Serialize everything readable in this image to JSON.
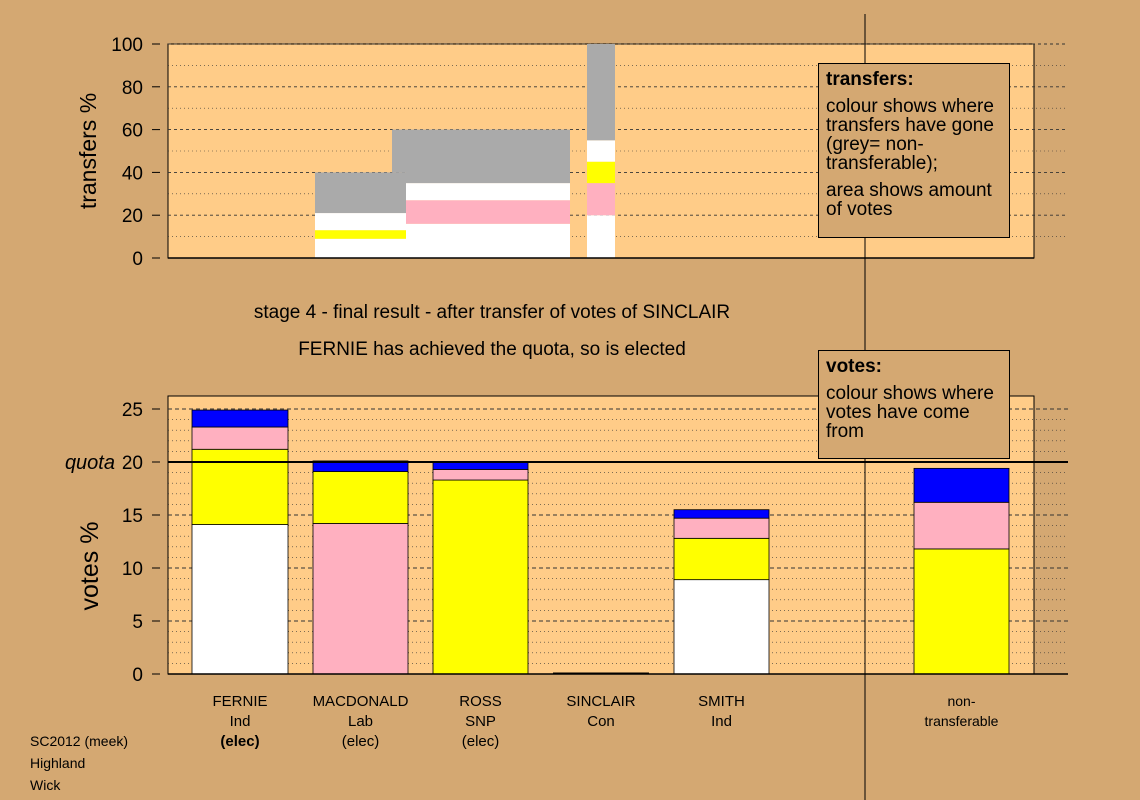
{
  "colors": {
    "page_bg": "#d4a872",
    "plot_bg": "#ffcc88",
    "Ind": "#ffffff",
    "SNP": "#ffff00",
    "Lab": "#ffb0c0",
    "Con": "#0000ff",
    "non_transferable": "#aaaaaa"
  },
  "headline": {
    "stage": "stage 4 - final result - after transfer of votes of SINCLAIR",
    "outcome": "FERNIE has achieved the quota, so is elected"
  },
  "legend_transfers": {
    "title": "transfers:",
    "text1": "colour shows where transfers have gone (grey= non-transferable);",
    "text2": "area shows amount of votes"
  },
  "legend_votes": {
    "title": "votes:",
    "text1": "colour shows where votes have come from"
  },
  "footer": {
    "line1": "SC2012 (meek)",
    "line2": "Highland",
    "line3": "Wick"
  },
  "chart_data": [
    {
      "type": "bar",
      "ylabel": "transfers %",
      "ylim": [
        0,
        100
      ],
      "yticks": [
        0,
        20,
        40,
        60,
        80,
        100
      ],
      "note": "Variable-width stacked bars; bar widths are proportional to the votes transferred at each stage; segments listed bottom-up",
      "columns": [
        {
          "segments": [
            {
              "party": "Ind",
              "from": 0,
              "to": 9
            },
            {
              "party": "SNP",
              "from": 9,
              "to": 13
            },
            {
              "party": "Ind",
              "from": 13,
              "to": 21
            },
            {
              "party": "non_transferable",
              "from": 21,
              "to": 40
            }
          ]
        },
        {
          "segments": [
            {
              "party": "Ind",
              "from": 0,
              "to": 16
            },
            {
              "party": "Lab",
              "from": 16,
              "to": 27
            },
            {
              "party": "Ind",
              "from": 27,
              "to": 35
            },
            {
              "party": "non_transferable",
              "from": 35,
              "to": 60
            }
          ]
        },
        {
          "segments": [
            {
              "party": "Ind",
              "from": 0,
              "to": 20
            },
            {
              "party": "Lab",
              "from": 20,
              "to": 35
            },
            {
              "party": "SNP",
              "from": 35,
              "to": 45
            },
            {
              "party": "Ind",
              "from": 45,
              "to": 55
            },
            {
              "party": "non_transferable",
              "from": 55,
              "to": 100
            }
          ]
        }
      ]
    },
    {
      "type": "bar",
      "ylabel": "votes %",
      "ylim": [
        0,
        26
      ],
      "yticks": [
        0,
        5,
        10,
        15,
        20,
        25
      ],
      "quota": 20,
      "quota_label": "quota",
      "candidates": [
        {
          "name": "FERNIE",
          "party": "Ind",
          "status": "(elec)",
          "status_bold": true,
          "segments": [
            {
              "party": "Ind",
              "value": 14.1
            },
            {
              "party": "SNP",
              "value": 7.1
            },
            {
              "party": "Lab",
              "value": 2.1
            },
            {
              "party": "Con",
              "value": 1.6
            }
          ]
        },
        {
          "name": "MACDONALD",
          "party": "Lab",
          "status": "(elec)",
          "status_bold": false,
          "segments": [
            {
              "party": "Lab",
              "value": 14.2
            },
            {
              "party": "SNP",
              "value": 4.9
            },
            {
              "party": "Con",
              "value": 1.0
            }
          ]
        },
        {
          "name": "ROSS",
          "party": "SNP",
          "status": "(elec)",
          "status_bold": false,
          "segments": [
            {
              "party": "SNP",
              "value": 18.3
            },
            {
              "party": "Lab",
              "value": 1.0
            },
            {
              "party": "Con",
              "value": 0.7
            }
          ]
        },
        {
          "name": "SINCLAIR",
          "party": "Con",
          "status": "",
          "status_bold": false,
          "segments": []
        },
        {
          "name": "SMITH",
          "party": "Ind",
          "status": "",
          "status_bold": false,
          "segments": [
            {
              "party": "Ind",
              "value": 8.9
            },
            {
              "party": "SNP",
              "value": 3.9
            },
            {
              "party": "Lab",
              "value": 1.9
            },
            {
              "party": "Con",
              "value": 0.8
            }
          ]
        },
        {
          "name": "non-",
          "party": "transferable",
          "status": "",
          "status_bold": false,
          "segments": [
            {
              "party": "SNP",
              "value": 11.8
            },
            {
              "party": "Lab",
              "value": 4.4
            },
            {
              "party": "Con",
              "value": 3.2
            }
          ]
        }
      ]
    }
  ]
}
